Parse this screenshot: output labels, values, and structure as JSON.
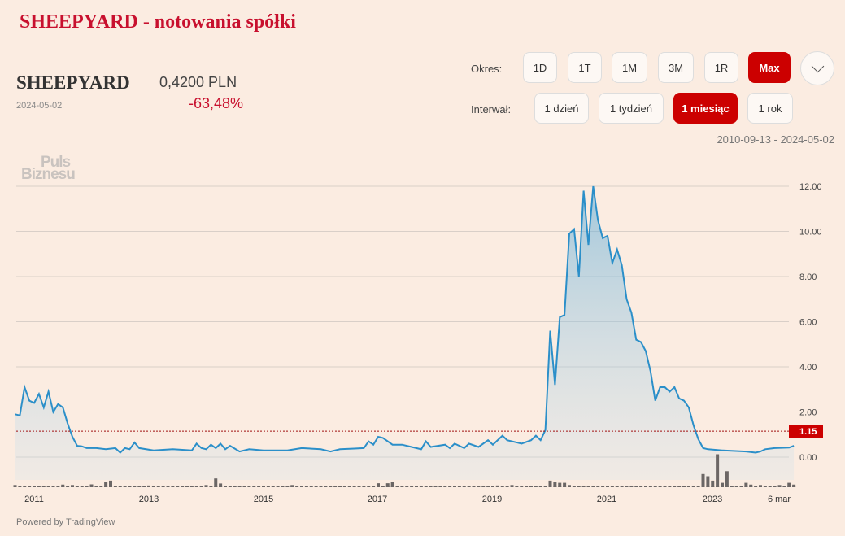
{
  "page": {
    "title": "SHEEPYARD - notowania spółki"
  },
  "quote": {
    "name": "SHEEPYARD",
    "date": "2024-05-02",
    "price": "0,4200 PLN",
    "change": "-63,48%"
  },
  "controls": {
    "period_label": "Okres:",
    "periods": [
      "1D",
      "1T",
      "1M",
      "3M",
      "1R",
      "Max"
    ],
    "period_selected": "Max",
    "interval_label": "Interwał:",
    "intervals": [
      "1 dzień",
      "1 tydzień",
      "1 miesiąc",
      "1 rok"
    ],
    "interval_selected": "1 miesiąc",
    "range": "2010-09-13 - 2024-05-02"
  },
  "logo": {
    "line1": "Puls",
    "line2": "Biznesu"
  },
  "footer": {
    "powered": "Powered by TradingView"
  },
  "colors": {
    "accent": "#c00000",
    "line": "#2b8fc9"
  },
  "chart_data": {
    "type": "area",
    "ylim": [
      -1.4,
      12.6
    ],
    "yticks": [
      "12.00",
      "10.00",
      "8.00",
      "6.00",
      "4.00",
      "2.00",
      "0.00"
    ],
    "xticks": [
      "2011",
      "2013",
      "2015",
      "2017",
      "2019",
      "2021",
      "2023",
      "6 mar"
    ],
    "last_value_label": "1.15",
    "reference_line": 1.15,
    "grid": true,
    "series": [
      {
        "points": [
          [
            "2010-09",
            1.9
          ],
          [
            "2010-10",
            1.85
          ],
          [
            "2010-11",
            3.1
          ],
          [
            "2010-12",
            2.5
          ],
          [
            "2011-01",
            2.4
          ],
          [
            "2011-02",
            2.8
          ],
          [
            "2011-03",
            2.2
          ],
          [
            "2011-04",
            2.9
          ],
          [
            "2011-05",
            2.0
          ],
          [
            "2011-06",
            2.35
          ],
          [
            "2011-07",
            2.2
          ],
          [
            "2011-08",
            1.5
          ],
          [
            "2011-09",
            0.9
          ],
          [
            "2011-10",
            0.5
          ],
          [
            "2011-11",
            0.48
          ],
          [
            "2011-12",
            0.4
          ],
          [
            "2012-02",
            0.4
          ],
          [
            "2012-04",
            0.35
          ],
          [
            "2012-06",
            0.4
          ],
          [
            "2012-07",
            0.2
          ],
          [
            "2012-08",
            0.4
          ],
          [
            "2012-09",
            0.35
          ],
          [
            "2012-10",
            0.65
          ],
          [
            "2012-11",
            0.4
          ],
          [
            "2013-02",
            0.3
          ],
          [
            "2013-06",
            0.35
          ],
          [
            "2013-10",
            0.3
          ],
          [
            "2013-11",
            0.6
          ],
          [
            "2013-12",
            0.4
          ],
          [
            "2014-01",
            0.35
          ],
          [
            "2014-02",
            0.55
          ],
          [
            "2014-03",
            0.4
          ],
          [
            "2014-04",
            0.6
          ],
          [
            "2014-05",
            0.35
          ],
          [
            "2014-06",
            0.5
          ],
          [
            "2014-08",
            0.25
          ],
          [
            "2014-10",
            0.35
          ],
          [
            "2015-01",
            0.3
          ],
          [
            "2015-06",
            0.3
          ],
          [
            "2015-09",
            0.4
          ],
          [
            "2016-01",
            0.35
          ],
          [
            "2016-03",
            0.25
          ],
          [
            "2016-05",
            0.35
          ],
          [
            "2016-08",
            0.38
          ],
          [
            "2016-10",
            0.4
          ],
          [
            "2016-11",
            0.7
          ],
          [
            "2016-12",
            0.55
          ],
          [
            "2017-01",
            0.9
          ],
          [
            "2017-02",
            0.85
          ],
          [
            "2017-04",
            0.55
          ],
          [
            "2017-06",
            0.55
          ],
          [
            "2017-08",
            0.45
          ],
          [
            "2017-10",
            0.35
          ],
          [
            "2017-11",
            0.7
          ],
          [
            "2017-12",
            0.45
          ],
          [
            "2018-03",
            0.55
          ],
          [
            "2018-04",
            0.4
          ],
          [
            "2018-05",
            0.6
          ],
          [
            "2018-07",
            0.4
          ],
          [
            "2018-08",
            0.6
          ],
          [
            "2018-10",
            0.45
          ],
          [
            "2018-12",
            0.75
          ],
          [
            "2019-01",
            0.55
          ],
          [
            "2019-03",
            0.95
          ],
          [
            "2019-04",
            0.75
          ],
          [
            "2019-07",
            0.6
          ],
          [
            "2019-09",
            0.75
          ],
          [
            "2019-10",
            0.95
          ],
          [
            "2019-11",
            0.75
          ],
          [
            "2019-12",
            1.2
          ],
          [
            "2020-01",
            5.6
          ],
          [
            "2020-02",
            3.2
          ],
          [
            "2020-03",
            6.2
          ],
          [
            "2020-04",
            6.3
          ],
          [
            "2020-05",
            9.9
          ],
          [
            "2020-06",
            10.1
          ],
          [
            "2020-07",
            8.0
          ],
          [
            "2020-08",
            11.8
          ],
          [
            "2020-09",
            9.4
          ],
          [
            "2020-10",
            12.0
          ],
          [
            "2020-11",
            10.5
          ],
          [
            "2020-12",
            9.7
          ],
          [
            "2021-01",
            9.8
          ],
          [
            "2021-02",
            8.6
          ],
          [
            "2021-03",
            9.2
          ],
          [
            "2021-04",
            8.5
          ],
          [
            "2021-05",
            7.0
          ],
          [
            "2021-06",
            6.4
          ],
          [
            "2021-07",
            5.2
          ],
          [
            "2021-08",
            5.1
          ],
          [
            "2021-09",
            4.7
          ],
          [
            "2021-10",
            3.8
          ],
          [
            "2021-11",
            2.5
          ],
          [
            "2021-12",
            3.1
          ],
          [
            "2022-01",
            3.1
          ],
          [
            "2022-02",
            2.9
          ],
          [
            "2022-03",
            3.1
          ],
          [
            "2022-04",
            2.6
          ],
          [
            "2022-05",
            2.5
          ],
          [
            "2022-06",
            2.2
          ],
          [
            "2022-07",
            1.4
          ],
          [
            "2022-08",
            0.8
          ],
          [
            "2022-09",
            0.4
          ],
          [
            "2022-10",
            0.35
          ],
          [
            "2023-01",
            0.3
          ],
          [
            "2023-06",
            0.25
          ],
          [
            "2023-08",
            0.2
          ],
          [
            "2023-09",
            0.25
          ],
          [
            "2023-10",
            0.35
          ],
          [
            "2023-12",
            0.4
          ],
          [
            "2024-03",
            0.42
          ],
          [
            "2024-04",
            0.5
          ]
        ]
      }
    ],
    "volume": [
      [
        "2010-09",
        1
      ],
      [
        "2011-01",
        0.6
      ],
      [
        "2011-07",
        1.2
      ],
      [
        "2011-09",
        1
      ],
      [
        "2012-01",
        1.3
      ],
      [
        "2012-04",
        2.5
      ],
      [
        "2012-05",
        3
      ],
      [
        "2013-01",
        0.8
      ],
      [
        "2014-01",
        1
      ],
      [
        "2014-03",
        4
      ],
      [
        "2014-04",
        1.7
      ],
      [
        "2015-01",
        0.4
      ],
      [
        "2015-07",
        1
      ],
      [
        "2017-01",
        1.8
      ],
      [
        "2017-03",
        1.8
      ],
      [
        "2017-04",
        2.5
      ],
      [
        "2018-01",
        0.5
      ],
      [
        "2019-02",
        0.8
      ],
      [
        "2019-05",
        1
      ],
      [
        "2020-01",
        3
      ],
      [
        "2020-02",
        2.5
      ],
      [
        "2020-03",
        2
      ],
      [
        "2020-04",
        2
      ],
      [
        "2020-05",
        1
      ],
      [
        "2022-09",
        6
      ],
      [
        "2022-10",
        5
      ],
      [
        "2022-11",
        3
      ],
      [
        "2022-12",
        15
      ],
      [
        "2023-01",
        2
      ],
      [
        "2023-02",
        7.3
      ],
      [
        "2023-03",
        0.5
      ],
      [
        "2023-06",
        2
      ],
      [
        "2023-07",
        1.2
      ],
      [
        "2023-09",
        1
      ],
      [
        "2024-01",
        1
      ],
      [
        "2024-03",
        2
      ],
      [
        "2024-04",
        1.2
      ]
    ]
  }
}
